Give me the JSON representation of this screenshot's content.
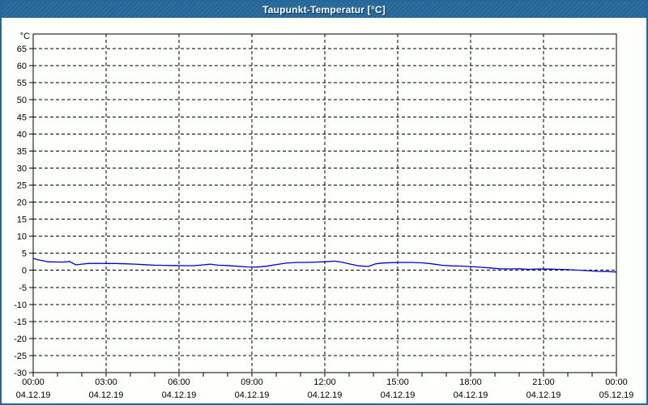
{
  "window": {
    "title": "Taupunkt-Temperatur [°C]"
  },
  "colors": {
    "titlebar": "#24689b",
    "window_border": "#24689b",
    "background": "#fdfffd",
    "grid": "#000000",
    "axis": "#000000",
    "line": "#0000cd",
    "title_text": "#ffffff",
    "label_text": "#000000"
  },
  "chart_data": {
    "type": "line",
    "title": "Taupunkt-Temperatur [°C]",
    "xlabel": "",
    "ylabel": "°C",
    "ylim": [
      -30,
      69.3
    ],
    "xlim_hours": [
      0,
      24
    ],
    "grid": "dashed",
    "legend": "none",
    "y_ticks": [
      -30,
      -25,
      -20,
      -15,
      -10,
      -5,
      0,
      5,
      10,
      15,
      20,
      25,
      30,
      35,
      40,
      45,
      50,
      55,
      60,
      65
    ],
    "x_minor_step_hours": 1,
    "x_major_step_hours": 3,
    "x_ticks": [
      {
        "hour": 0,
        "time": "00:00",
        "date": "04.12.19"
      },
      {
        "hour": 3,
        "time": "03:00",
        "date": "04.12.19"
      },
      {
        "hour": 6,
        "time": "06:00",
        "date": "04.12.19"
      },
      {
        "hour": 9,
        "time": "09:00",
        "date": "04.12.19"
      },
      {
        "hour": 12,
        "time": "12:00",
        "date": "04.12.19"
      },
      {
        "hour": 15,
        "time": "15:00",
        "date": "04.12.19"
      },
      {
        "hour": 18,
        "time": "18:00",
        "date": "04.12.19"
      },
      {
        "hour": 21,
        "time": "21:00",
        "date": "04.12.19"
      },
      {
        "hour": 24,
        "time": "00:00",
        "date": "05.12.19"
      }
    ],
    "series": [
      {
        "name": "Taupunkt-Temperatur",
        "color": "#0000cd",
        "unit": "°C",
        "points": [
          [
            0,
            3.5
          ],
          [
            0.2,
            3.1
          ],
          [
            0.4,
            2.8
          ],
          [
            0.6,
            2.5
          ],
          [
            0.9,
            2.45
          ],
          [
            1.2,
            2.4
          ],
          [
            1.5,
            2.6
          ],
          [
            1.75,
            1.6
          ],
          [
            2,
            1.8
          ],
          [
            2.25,
            2.0
          ],
          [
            2.6,
            2.05
          ],
          [
            3,
            2.0
          ],
          [
            3.4,
            2.0
          ],
          [
            3.8,
            1.9
          ],
          [
            4.2,
            1.8
          ],
          [
            4.6,
            1.65
          ],
          [
            5,
            1.5
          ],
          [
            5.4,
            1.45
          ],
          [
            5.8,
            1.4
          ],
          [
            6.2,
            1.35
          ],
          [
            6.6,
            1.35
          ],
          [
            7,
            1.6
          ],
          [
            7.3,
            1.8
          ],
          [
            7.6,
            1.5
          ],
          [
            8,
            1.4
          ],
          [
            8.4,
            1.2
          ],
          [
            8.8,
            1.0
          ],
          [
            9.2,
            0.95
          ],
          [
            9.6,
            1.2
          ],
          [
            10,
            1.7
          ],
          [
            10.4,
            2.1
          ],
          [
            10.8,
            2.3
          ],
          [
            11.2,
            2.3
          ],
          [
            11.6,
            2.4
          ],
          [
            12,
            2.5
          ],
          [
            12.4,
            2.7
          ],
          [
            12.7,
            2.4
          ],
          [
            13,
            1.9
          ],
          [
            13.4,
            1.3
          ],
          [
            13.8,
            1.15
          ],
          [
            14.1,
            1.9
          ],
          [
            14.4,
            2.15
          ],
          [
            14.8,
            2.25
          ],
          [
            15.2,
            2.3
          ],
          [
            15.6,
            2.3
          ],
          [
            16,
            2.2
          ],
          [
            16.4,
            1.9
          ],
          [
            16.8,
            1.5
          ],
          [
            17.2,
            1.3
          ],
          [
            17.6,
            1.25
          ],
          [
            18,
            1.1
          ],
          [
            18.4,
            0.9
          ],
          [
            18.8,
            0.7
          ],
          [
            19.2,
            0.45
          ],
          [
            19.6,
            0.4
          ],
          [
            20,
            0.45
          ],
          [
            20.4,
            0.3
          ],
          [
            20.8,
            0.4
          ],
          [
            21.2,
            0.35
          ],
          [
            21.6,
            0.3
          ],
          [
            22,
            0.2
          ],
          [
            22.4,
            0.05
          ],
          [
            22.8,
            -0.1
          ],
          [
            23.2,
            -0.3
          ],
          [
            23.6,
            -0.35
          ],
          [
            24,
            -0.5
          ]
        ]
      }
    ]
  }
}
